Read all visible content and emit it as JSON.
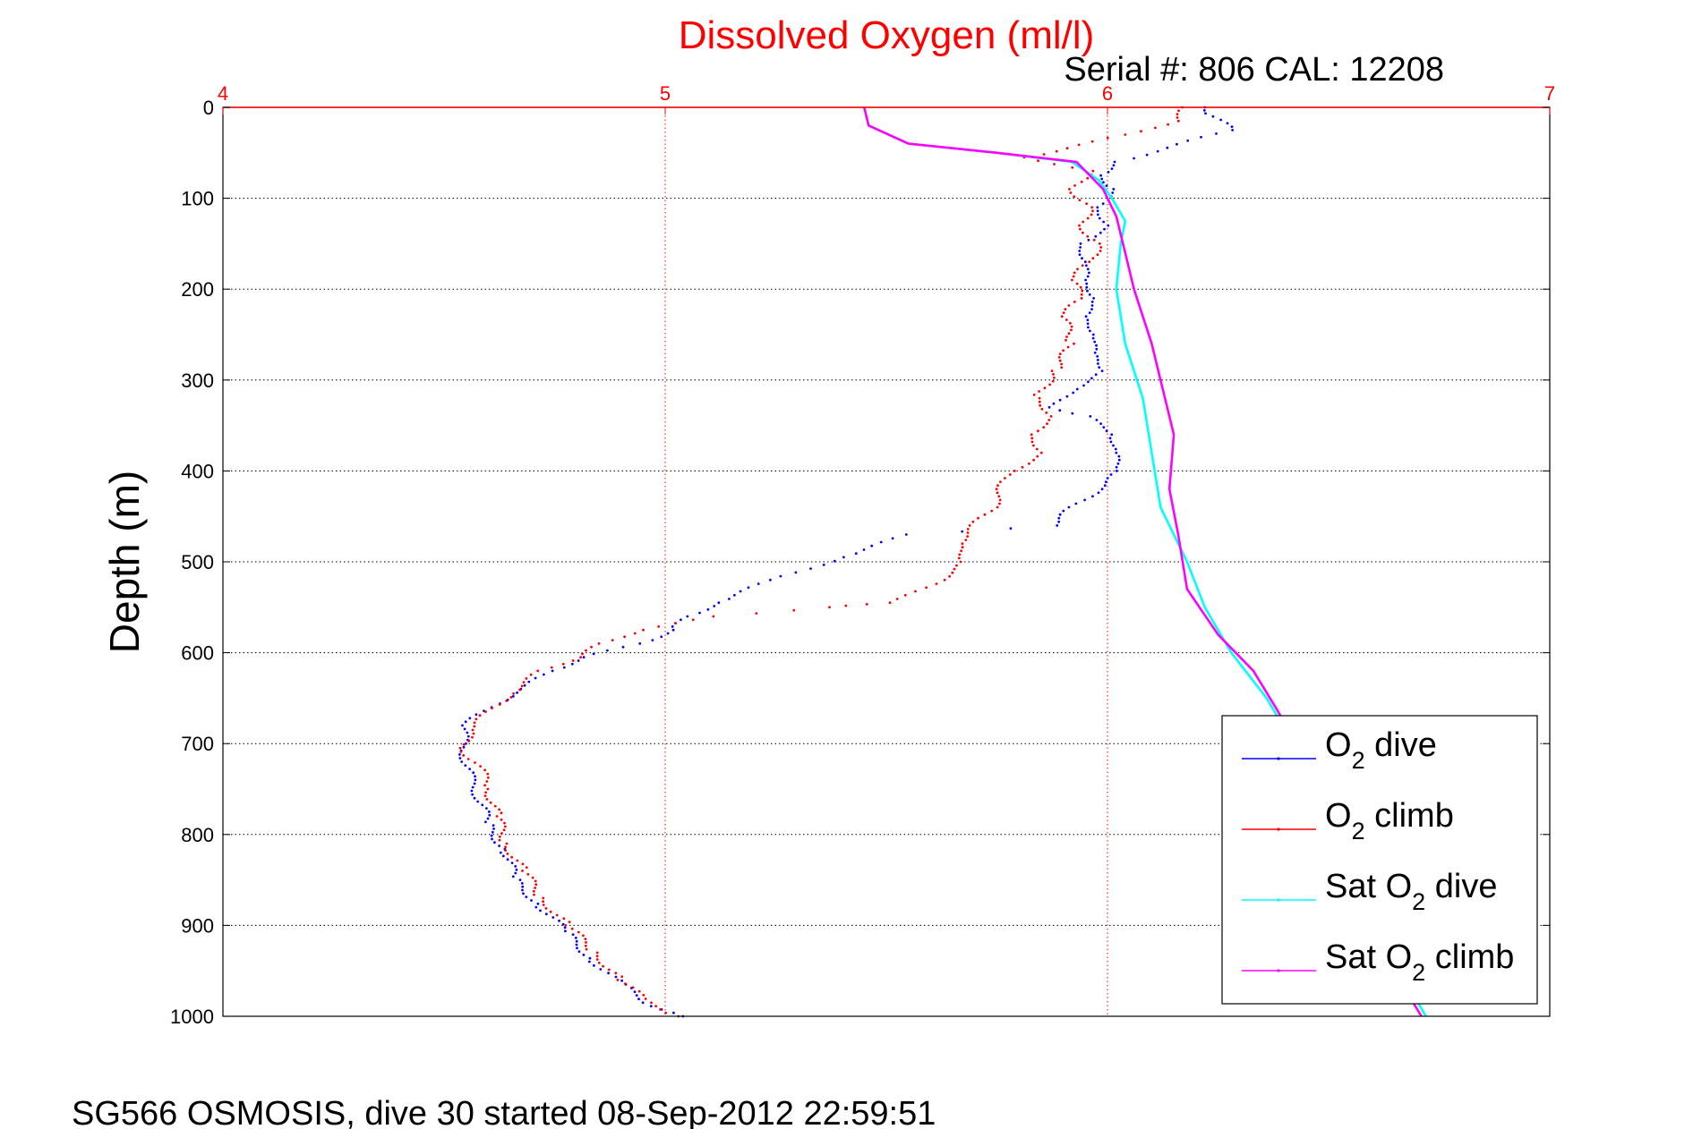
{
  "figure": {
    "footer": "SG566 OSMOSIS, dive 30 started 08-Sep-2012 22:59:51"
  },
  "chart_data": {
    "type": "line",
    "title": "Dissolved Oxygen (ml/l)",
    "subtitle": "Serial #: 806  CAL: 12208",
    "xlabel": "",
    "ylabel": "Depth (m)",
    "xlim": [
      4,
      7
    ],
    "ylim": [
      0,
      1000
    ],
    "y_reversed": true,
    "x_axis_position": "top",
    "x_ticks": [
      4,
      5,
      6,
      7
    ],
    "y_ticks": [
      0,
      100,
      200,
      300,
      400,
      500,
      600,
      700,
      800,
      900,
      1000
    ],
    "grid": true,
    "legend_position": "bottom-right",
    "colors": {
      "x_axis": "#ff0000",
      "title": "#ff0000",
      "grid": "#000000",
      "x_grid": "#ff0000"
    },
    "series": [
      {
        "name": "O2 dive",
        "label_base": "O",
        "label_sub": "2",
        "label_rest": " dive",
        "color": "#0000ff",
        "style": "dots",
        "points": [
          [
            6.22,
            0
          ],
          [
            6.24,
            10
          ],
          [
            6.28,
            25
          ],
          [
            6.02,
            60
          ],
          [
            5.98,
            75
          ],
          [
            6.02,
            90
          ],
          [
            5.97,
            110
          ],
          [
            6.01,
            130
          ],
          [
            5.93,
            150
          ],
          [
            5.96,
            170
          ],
          [
            5.94,
            190
          ],
          [
            5.98,
            210
          ],
          [
            5.94,
            230
          ],
          [
            5.98,
            250
          ],
          [
            5.96,
            270
          ],
          [
            6.0,
            290
          ],
          [
            5.92,
            310
          ],
          [
            5.88,
            330
          ],
          [
            5.95,
            340
          ],
          [
            6.02,
            360
          ],
          [
            6.01,
            380
          ],
          [
            6.03,
            400
          ],
          [
            5.98,
            420
          ],
          [
            5.92,
            440
          ],
          [
            5.88,
            460
          ],
          [
            5.55,
            470
          ],
          [
            5.4,
            495
          ],
          [
            5.24,
            520
          ],
          [
            5.12,
            545
          ],
          [
            5.05,
            560
          ],
          [
            5.02,
            575
          ],
          [
            4.94,
            590
          ],
          [
            4.82,
            605
          ],
          [
            4.74,
            620
          ],
          [
            4.68,
            640
          ],
          [
            4.6,
            660
          ],
          [
            4.55,
            680
          ],
          [
            4.54,
            700
          ],
          [
            4.55,
            720
          ],
          [
            4.56,
            740
          ],
          [
            4.58,
            760
          ],
          [
            4.6,
            790
          ],
          [
            4.64,
            820
          ],
          [
            4.66,
            850
          ],
          [
            4.72,
            880
          ],
          [
            4.78,
            910
          ],
          [
            4.84,
            940
          ],
          [
            4.9,
            965
          ],
          [
            4.96,
            985
          ],
          [
            5.04,
            1000
          ]
        ]
      },
      {
        "name": "O2 climb",
        "label_base": "O",
        "label_sub": "2",
        "label_rest": " climb",
        "color": "#ff0000",
        "style": "dots",
        "points": [
          [
            6.18,
            0
          ],
          [
            6.15,
            15
          ],
          [
            6.05,
            30
          ],
          [
            5.9,
            45
          ],
          [
            5.82,
            55
          ],
          [
            5.96,
            70
          ],
          [
            5.92,
            90
          ],
          [
            5.96,
            110
          ],
          [
            5.94,
            130
          ],
          [
            5.98,
            150
          ],
          [
            5.96,
            170
          ],
          [
            5.92,
            190
          ],
          [
            5.94,
            210
          ],
          [
            5.9,
            230
          ],
          [
            5.92,
            260
          ],
          [
            5.88,
            290
          ],
          [
            5.84,
            320
          ],
          [
            5.88,
            340
          ],
          [
            5.82,
            360
          ],
          [
            5.86,
            380
          ],
          [
            5.78,
            400
          ],
          [
            5.76,
            420
          ],
          [
            5.74,
            440
          ],
          [
            5.7,
            460
          ],
          [
            5.66,
            480
          ],
          [
            5.68,
            500
          ],
          [
            5.62,
            520
          ],
          [
            5.52,
            545
          ],
          [
            5.36,
            550
          ],
          [
            5.12,
            560
          ],
          [
            4.94,
            575
          ],
          [
            4.86,
            590
          ],
          [
            4.8,
            605
          ],
          [
            4.72,
            620
          ],
          [
            4.65,
            645
          ],
          [
            4.6,
            665
          ],
          [
            4.56,
            685
          ],
          [
            4.54,
            705
          ],
          [
            4.58,
            725
          ],
          [
            4.6,
            750
          ],
          [
            4.62,
            780
          ],
          [
            4.64,
            810
          ],
          [
            4.68,
            840
          ],
          [
            4.72,
            870
          ],
          [
            4.78,
            900
          ],
          [
            4.84,
            930
          ],
          [
            4.9,
            960
          ],
          [
            4.96,
            985
          ],
          [
            5.03,
            1000
          ]
        ]
      },
      {
        "name": "Sat O2 dive",
        "label_base": "Sat O",
        "label_sub": "2",
        "label_rest": " dive",
        "color": "#00ffff",
        "style": "line",
        "points": [
          [
            5.45,
            0
          ],
          [
            5.46,
            20
          ],
          [
            5.55,
            40
          ],
          [
            5.75,
            50
          ],
          [
            5.92,
            60
          ],
          [
            5.98,
            80
          ],
          [
            6.01,
            100
          ],
          [
            6.04,
            125
          ],
          [
            6.03,
            150
          ],
          [
            6.02,
            200
          ],
          [
            6.04,
            260
          ],
          [
            6.08,
            320
          ],
          [
            6.1,
            380
          ],
          [
            6.12,
            440
          ],
          [
            6.18,
            500
          ],
          [
            6.22,
            550
          ],
          [
            6.28,
            600
          ],
          [
            6.36,
            650
          ],
          [
            6.42,
            700
          ],
          [
            6.48,
            750
          ],
          [
            6.54,
            800
          ],
          [
            6.58,
            850
          ],
          [
            6.62,
            900
          ],
          [
            6.66,
            950
          ],
          [
            6.72,
            1000
          ]
        ]
      },
      {
        "name": "Sat O2 climb",
        "label_base": "Sat O",
        "label_sub": "2",
        "label_rest": " climb",
        "color": "#ff00ff",
        "style": "line",
        "points": [
          [
            5.45,
            0
          ],
          [
            5.46,
            20
          ],
          [
            5.55,
            40
          ],
          [
            5.75,
            50
          ],
          [
            5.93,
            60
          ],
          [
            5.99,
            90
          ],
          [
            6.02,
            120
          ],
          [
            6.04,
            160
          ],
          [
            6.06,
            200
          ],
          [
            6.1,
            260
          ],
          [
            6.13,
            320
          ],
          [
            6.15,
            360
          ],
          [
            6.14,
            420
          ],
          [
            6.16,
            470
          ],
          [
            6.18,
            530
          ],
          [
            6.25,
            580
          ],
          [
            6.33,
            620
          ],
          [
            6.38,
            660
          ],
          [
            6.44,
            710
          ],
          [
            6.5,
            760
          ],
          [
            6.55,
            810
          ],
          [
            6.58,
            860
          ],
          [
            6.62,
            910
          ],
          [
            6.66,
            960
          ],
          [
            6.71,
            1000
          ]
        ]
      }
    ]
  }
}
